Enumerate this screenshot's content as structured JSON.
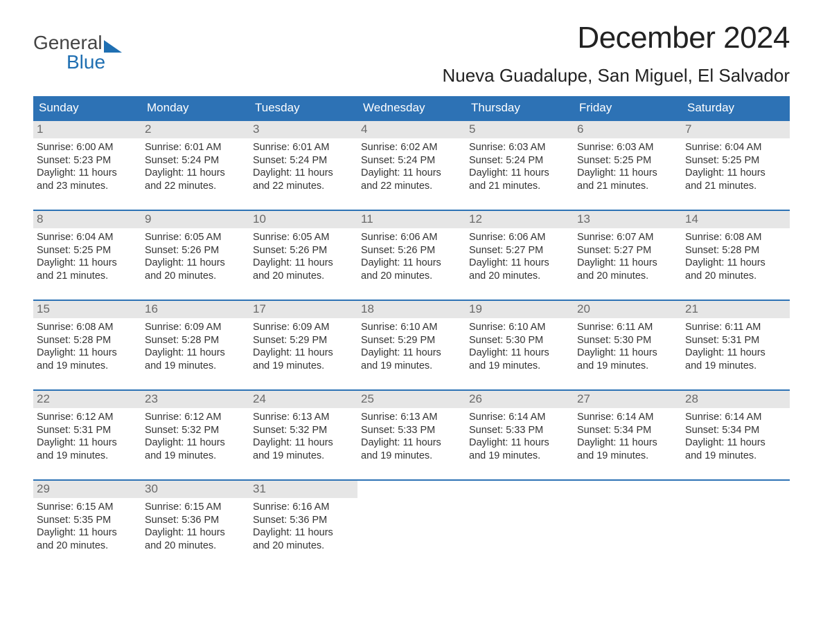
{
  "logo": {
    "text_top": "General",
    "text_bottom": "Blue"
  },
  "title": "December 2024",
  "location": "Nueva Guadalupe, San Miguel, El Salvador",
  "colors": {
    "accent": "#2d72b5",
    "daynum_bg": "#e6e6e6",
    "daynum_text": "#6a6a6a",
    "body_text": "#333333",
    "background": "#ffffff"
  },
  "weekdays": [
    "Sunday",
    "Monday",
    "Tuesday",
    "Wednesday",
    "Thursday",
    "Friday",
    "Saturday"
  ],
  "weeks": [
    [
      {
        "n": "1",
        "sunrise": "6:00 AM",
        "sunset": "5:23 PM",
        "dl1": "11 hours",
        "dl2": "23 minutes."
      },
      {
        "n": "2",
        "sunrise": "6:01 AM",
        "sunset": "5:24 PM",
        "dl1": "11 hours",
        "dl2": "22 minutes."
      },
      {
        "n": "3",
        "sunrise": "6:01 AM",
        "sunset": "5:24 PM",
        "dl1": "11 hours",
        "dl2": "22 minutes."
      },
      {
        "n": "4",
        "sunrise": "6:02 AM",
        "sunset": "5:24 PM",
        "dl1": "11 hours",
        "dl2": "22 minutes."
      },
      {
        "n": "5",
        "sunrise": "6:03 AM",
        "sunset": "5:24 PM",
        "dl1": "11 hours",
        "dl2": "21 minutes."
      },
      {
        "n": "6",
        "sunrise": "6:03 AM",
        "sunset": "5:25 PM",
        "dl1": "11 hours",
        "dl2": "21 minutes."
      },
      {
        "n": "7",
        "sunrise": "6:04 AM",
        "sunset": "5:25 PM",
        "dl1": "11 hours",
        "dl2": "21 minutes."
      }
    ],
    [
      {
        "n": "8",
        "sunrise": "6:04 AM",
        "sunset": "5:25 PM",
        "dl1": "11 hours",
        "dl2": "21 minutes."
      },
      {
        "n": "9",
        "sunrise": "6:05 AM",
        "sunset": "5:26 PM",
        "dl1": "11 hours",
        "dl2": "20 minutes."
      },
      {
        "n": "10",
        "sunrise": "6:05 AM",
        "sunset": "5:26 PM",
        "dl1": "11 hours",
        "dl2": "20 minutes."
      },
      {
        "n": "11",
        "sunrise": "6:06 AM",
        "sunset": "5:26 PM",
        "dl1": "11 hours",
        "dl2": "20 minutes."
      },
      {
        "n": "12",
        "sunrise": "6:06 AM",
        "sunset": "5:27 PM",
        "dl1": "11 hours",
        "dl2": "20 minutes."
      },
      {
        "n": "13",
        "sunrise": "6:07 AM",
        "sunset": "5:27 PM",
        "dl1": "11 hours",
        "dl2": "20 minutes."
      },
      {
        "n": "14",
        "sunrise": "6:08 AM",
        "sunset": "5:28 PM",
        "dl1": "11 hours",
        "dl2": "20 minutes."
      }
    ],
    [
      {
        "n": "15",
        "sunrise": "6:08 AM",
        "sunset": "5:28 PM",
        "dl1": "11 hours",
        "dl2": "19 minutes."
      },
      {
        "n": "16",
        "sunrise": "6:09 AM",
        "sunset": "5:28 PM",
        "dl1": "11 hours",
        "dl2": "19 minutes."
      },
      {
        "n": "17",
        "sunrise": "6:09 AM",
        "sunset": "5:29 PM",
        "dl1": "11 hours",
        "dl2": "19 minutes."
      },
      {
        "n": "18",
        "sunrise": "6:10 AM",
        "sunset": "5:29 PM",
        "dl1": "11 hours",
        "dl2": "19 minutes."
      },
      {
        "n": "19",
        "sunrise": "6:10 AM",
        "sunset": "5:30 PM",
        "dl1": "11 hours",
        "dl2": "19 minutes."
      },
      {
        "n": "20",
        "sunrise": "6:11 AM",
        "sunset": "5:30 PM",
        "dl1": "11 hours",
        "dl2": "19 minutes."
      },
      {
        "n": "21",
        "sunrise": "6:11 AM",
        "sunset": "5:31 PM",
        "dl1": "11 hours",
        "dl2": "19 minutes."
      }
    ],
    [
      {
        "n": "22",
        "sunrise": "6:12 AM",
        "sunset": "5:31 PM",
        "dl1": "11 hours",
        "dl2": "19 minutes."
      },
      {
        "n": "23",
        "sunrise": "6:12 AM",
        "sunset": "5:32 PM",
        "dl1": "11 hours",
        "dl2": "19 minutes."
      },
      {
        "n": "24",
        "sunrise": "6:13 AM",
        "sunset": "5:32 PM",
        "dl1": "11 hours",
        "dl2": "19 minutes."
      },
      {
        "n": "25",
        "sunrise": "6:13 AM",
        "sunset": "5:33 PM",
        "dl1": "11 hours",
        "dl2": "19 minutes."
      },
      {
        "n": "26",
        "sunrise": "6:14 AM",
        "sunset": "5:33 PM",
        "dl1": "11 hours",
        "dl2": "19 minutes."
      },
      {
        "n": "27",
        "sunrise": "6:14 AM",
        "sunset": "5:34 PM",
        "dl1": "11 hours",
        "dl2": "19 minutes."
      },
      {
        "n": "28",
        "sunrise": "6:14 AM",
        "sunset": "5:34 PM",
        "dl1": "11 hours",
        "dl2": "19 minutes."
      }
    ],
    [
      {
        "n": "29",
        "sunrise": "6:15 AM",
        "sunset": "5:35 PM",
        "dl1": "11 hours",
        "dl2": "20 minutes."
      },
      {
        "n": "30",
        "sunrise": "6:15 AM",
        "sunset": "5:36 PM",
        "dl1": "11 hours",
        "dl2": "20 minutes."
      },
      {
        "n": "31",
        "sunrise": "6:16 AM",
        "sunset": "5:36 PM",
        "dl1": "11 hours",
        "dl2": "20 minutes."
      },
      null,
      null,
      null,
      null
    ]
  ],
  "labels": {
    "sunrise": "Sunrise:",
    "sunset": "Sunset:",
    "daylight": "Daylight:",
    "and": "and"
  }
}
